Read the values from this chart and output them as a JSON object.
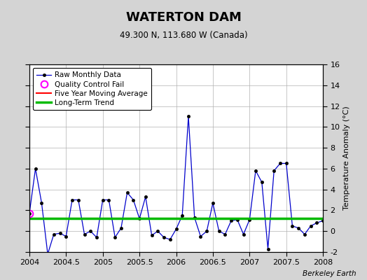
{
  "title": "WATERTON DAM",
  "subtitle": "49.300 N, 113.680 W (Canada)",
  "ylabel_right": "Temperature Anomaly (°C)",
  "watermark": "Berkeley Earth",
  "xlim": [
    2004.0,
    2008.0
  ],
  "ylim": [
    -2,
    16
  ],
  "yticks": [
    -2,
    0,
    2,
    4,
    6,
    8,
    10,
    12,
    14,
    16
  ],
  "xticks": [
    2004,
    2004.5,
    2005,
    2005.5,
    2006,
    2006.5,
    2007,
    2007.5,
    2008
  ],
  "xtick_labels": [
    "2004",
    "2004.5",
    "2005",
    "2005.5",
    "2006",
    "2006.5",
    "2007",
    "2007.5",
    "2008"
  ],
  "long_term_trend_y": 1.2,
  "qc_fail_x": 2004.0,
  "qc_fail_y": 1.7,
  "raw_data_x": [
    2004.0,
    2004.083,
    2004.167,
    2004.25,
    2004.333,
    2004.417,
    2004.5,
    2004.583,
    2004.667,
    2004.75,
    2004.833,
    2004.917,
    2005.0,
    2005.083,
    2005.167,
    2005.25,
    2005.333,
    2005.417,
    2005.5,
    2005.583,
    2005.667,
    2005.75,
    2005.833,
    2005.917,
    2006.0,
    2006.083,
    2006.167,
    2006.25,
    2006.333,
    2006.417,
    2006.5,
    2006.583,
    2006.667,
    2006.75,
    2006.833,
    2006.917,
    2007.0,
    2007.083,
    2007.167,
    2007.25,
    2007.333,
    2007.417,
    2007.5,
    2007.583,
    2007.667,
    2007.75,
    2007.833,
    2007.917,
    2008.0
  ],
  "raw_data_y": [
    1.7,
    6.0,
    2.7,
    -2.2,
    -0.3,
    -0.2,
    -0.5,
    3.0,
    3.0,
    -0.3,
    0.0,
    -0.6,
    3.0,
    3.0,
    -0.6,
    0.3,
    3.7,
    3.0,
    1.2,
    3.3,
    -0.4,
    0.0,
    -0.6,
    -0.8,
    0.2,
    1.5,
    11.0,
    1.3,
    -0.5,
    0.0,
    2.7,
    0.0,
    -0.3,
    1.0,
    1.1,
    -0.3,
    1.1,
    5.8,
    4.7,
    -1.7,
    5.8,
    6.5,
    6.5,
    0.5,
    0.3,
    -0.3,
    0.5,
    0.8,
    1.0
  ],
  "line_color": "#0000cc",
  "marker_color": "#000000",
  "trend_color": "#00bb00",
  "five_year_color": "#ff0000",
  "qc_color": "#ff00ff",
  "background_color": "#d4d4d4",
  "plot_bg_color": "#ffffff",
  "grid_color": "#b0b0b0"
}
